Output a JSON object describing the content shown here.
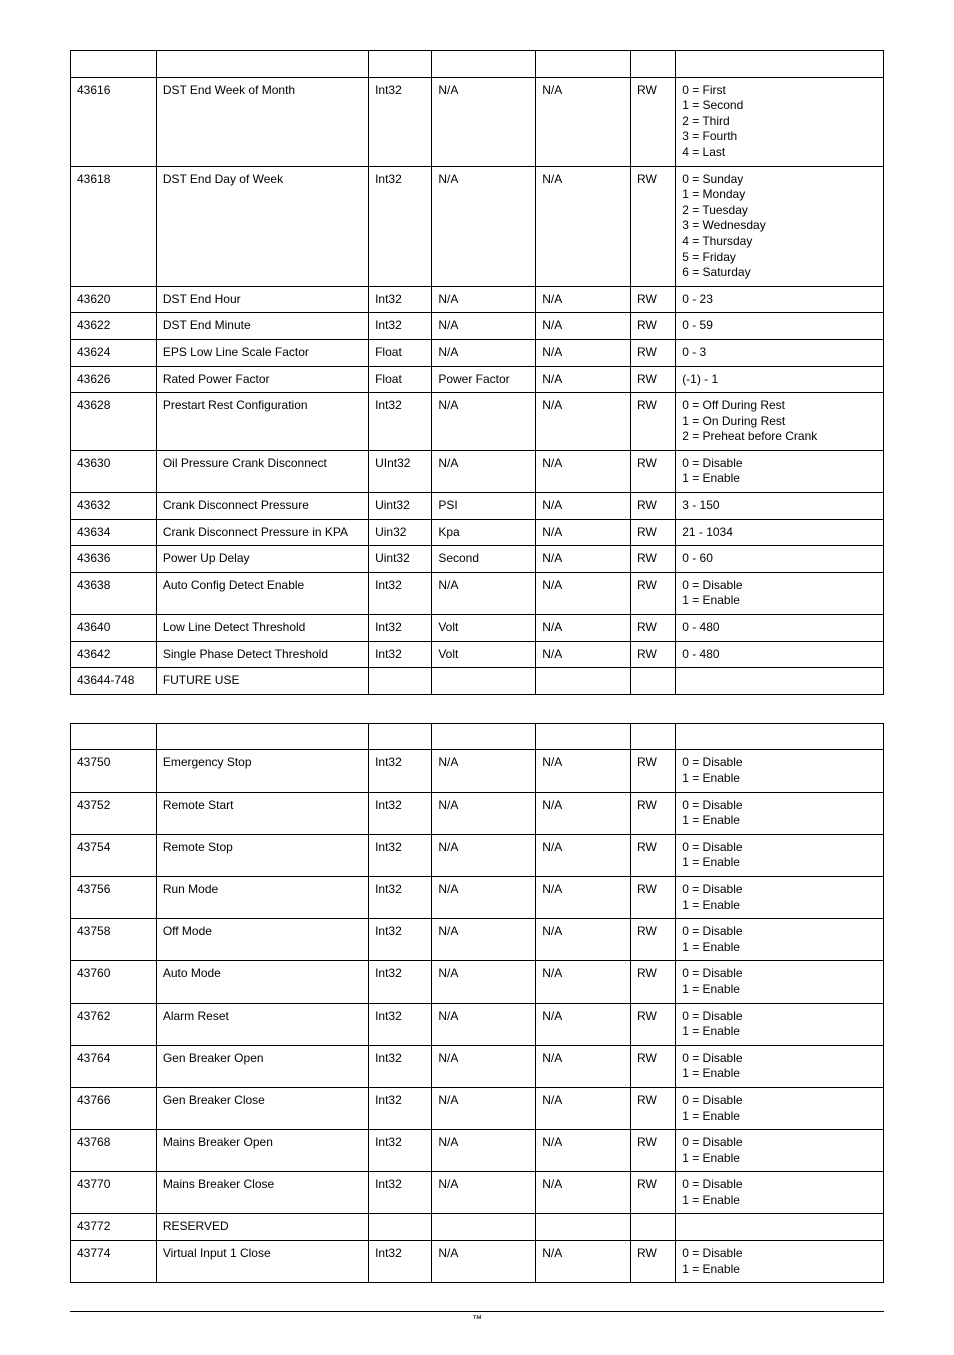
{
  "table_layout": {
    "border_color": "#000000",
    "font_family": "Arial",
    "font_size_pt": 9,
    "columns": [
      {
        "key": "reg",
        "class": "col-reg"
      },
      {
        "key": "desc",
        "class": "col-desc"
      },
      {
        "key": "type",
        "class": "col-type"
      },
      {
        "key": "unit",
        "class": "col-unit"
      },
      {
        "key": "scale",
        "class": "col-scale"
      },
      {
        "key": "rw",
        "class": "col-rw"
      },
      {
        "key": "range",
        "class": "col-range"
      }
    ]
  },
  "table1": {
    "rows": [
      {
        "reg": "",
        "desc": "",
        "type": "",
        "unit": "",
        "scale": "",
        "rw": "",
        "range": ""
      },
      {
        "reg": "43616",
        "desc": "DST End Week of Month",
        "type": "Int32",
        "unit": "N/A",
        "scale": "N/A",
        "rw": "RW",
        "range": "0 = First\n1 = Second\n2 = Third\n3 = Fourth\n4 = Last"
      },
      {
        "reg": "43618",
        "desc": "DST End Day of Week",
        "type": "Int32",
        "unit": "N/A",
        "scale": "N/A",
        "rw": "RW",
        "range": "0 = Sunday\n1 = Monday\n2 = Tuesday\n3 = Wednesday\n4 = Thursday\n5 = Friday\n6 = Saturday"
      },
      {
        "reg": "43620",
        "desc": "DST End Hour",
        "type": "Int32",
        "unit": "N/A",
        "scale": "N/A",
        "rw": "RW",
        "range": "0 - 23"
      },
      {
        "reg": "43622",
        "desc": "DST End Minute",
        "type": "Int32",
        "unit": "N/A",
        "scale": "N/A",
        "rw": "RW",
        "range": "0 - 59"
      },
      {
        "reg": "43624",
        "desc": "EPS Low Line Scale Factor",
        "type": "Float",
        "unit": "N/A",
        "scale": "N/A",
        "rw": "RW",
        "range": "0 - 3"
      },
      {
        "reg": "43626",
        "desc": "Rated Power Factor",
        "type": "Float",
        "unit": "Power Factor",
        "scale": "N/A",
        "rw": "RW",
        "range": "(-1) - 1"
      },
      {
        "reg": "43628",
        "desc": "Prestart Rest Configuration",
        "type": "Int32",
        "unit": "N/A",
        "scale": "N/A",
        "rw": "RW",
        "range": "0 = Off During Rest\n1 = On During Rest\n2 = Preheat before Crank"
      },
      {
        "reg": "43630",
        "desc": "Oil Pressure Crank Disconnect",
        "type": "UInt32",
        "unit": "N/A",
        "scale": "N/A",
        "rw": "RW",
        "range": "0 = Disable\n1 = Enable"
      },
      {
        "reg": "43632",
        "desc": "Crank Disconnect Pressure",
        "type": "Uint32",
        "unit": "PSI",
        "scale": "N/A",
        "rw": "RW",
        "range": "3 - 150"
      },
      {
        "reg": "43634",
        "desc": "Crank Disconnect Pressure in KPA",
        "type": "Uin32",
        "unit": "Kpa",
        "scale": "N/A",
        "rw": "RW",
        "range": "21 - 1034"
      },
      {
        "reg": "43636",
        "desc": "Power Up Delay",
        "type": "Uint32",
        "unit": "Second",
        "scale": "N/A",
        "rw": "RW",
        "range": "0 - 60"
      },
      {
        "reg": "43638",
        "desc": "Auto Config Detect Enable",
        "type": "Int32",
        "unit": "N/A",
        "scale": "N/A",
        "rw": "RW",
        "range": "0 = Disable\n1 = Enable"
      },
      {
        "reg": "43640",
        "desc": "Low Line Detect Threshold",
        "type": "Int32",
        "unit": "Volt",
        "scale": "N/A",
        "rw": "RW",
        "range": "0 - 480"
      },
      {
        "reg": "43642",
        "desc": "Single Phase Detect Threshold",
        "type": "Int32",
        "unit": "Volt",
        "scale": "N/A",
        "rw": "RW",
        "range": "0 - 480"
      },
      {
        "reg": "43644-748",
        "desc": "FUTURE USE",
        "type": "",
        "unit": "",
        "scale": "",
        "rw": "",
        "range": ""
      }
    ]
  },
  "table2": {
    "rows": [
      {
        "reg": "",
        "desc": "",
        "type": "",
        "unit": "",
        "scale": "",
        "rw": "",
        "range": ""
      },
      {
        "reg": "43750",
        "desc": "Emergency Stop",
        "type": "Int32",
        "unit": "N/A",
        "scale": "N/A",
        "rw": "RW",
        "range": "0 = Disable\n1 = Enable"
      },
      {
        "reg": "43752",
        "desc": "Remote Start",
        "type": "Int32",
        "unit": "N/A",
        "scale": "N/A",
        "rw": "RW",
        "range": "0 = Disable\n1 = Enable"
      },
      {
        "reg": "43754",
        "desc": "Remote Stop",
        "type": "Int32",
        "unit": "N/A",
        "scale": "N/A",
        "rw": "RW",
        "range": "0 = Disable\n1 = Enable"
      },
      {
        "reg": "43756",
        "desc": "Run Mode",
        "type": "Int32",
        "unit": "N/A",
        "scale": "N/A",
        "rw": "RW",
        "range": "0 = Disable\n1 = Enable"
      },
      {
        "reg": "43758",
        "desc": "Off Mode",
        "type": "Int32",
        "unit": "N/A",
        "scale": "N/A",
        "rw": "RW",
        "range": "0 = Disable\n1 = Enable"
      },
      {
        "reg": "43760",
        "desc": "Auto Mode",
        "type": "Int32",
        "unit": "N/A",
        "scale": "N/A",
        "rw": "RW",
        "range": "0 = Disable\n1 = Enable"
      },
      {
        "reg": "43762",
        "desc": "Alarm Reset",
        "type": "Int32",
        "unit": "N/A",
        "scale": "N/A",
        "rw": "RW",
        "range": "0 = Disable\n1 = Enable"
      },
      {
        "reg": "43764",
        "desc": "Gen Breaker Open",
        "type": "Int32",
        "unit": "N/A",
        "scale": "N/A",
        "rw": "RW",
        "range": "0 = Disable\n1 = Enable"
      },
      {
        "reg": "43766",
        "desc": "Gen Breaker Close",
        "type": "Int32",
        "unit": "N/A",
        "scale": "N/A",
        "rw": "RW",
        "range": "0 = Disable\n1 = Enable"
      },
      {
        "reg": "43768",
        "desc": "Mains Breaker Open",
        "type": "Int32",
        "unit": "N/A",
        "scale": "N/A",
        "rw": "RW",
        "range": "0 = Disable\n1 = Enable"
      },
      {
        "reg": "43770",
        "desc": "Mains Breaker Close",
        "type": "Int32",
        "unit": "N/A",
        "scale": "N/A",
        "rw": "RW",
        "range": "0 = Disable\n1 = Enable"
      },
      {
        "reg": "43772",
        "desc": "RESERVED",
        "type": "",
        "unit": "",
        "scale": "",
        "rw": "",
        "range": ""
      },
      {
        "reg": "43774",
        "desc": "Virtual Input 1 Close",
        "type": "Int32",
        "unit": "N/A",
        "scale": "N/A",
        "rw": "RW",
        "range": "0 = Disable\n1 = Enable"
      }
    ]
  },
  "footer": {
    "text": "™"
  }
}
